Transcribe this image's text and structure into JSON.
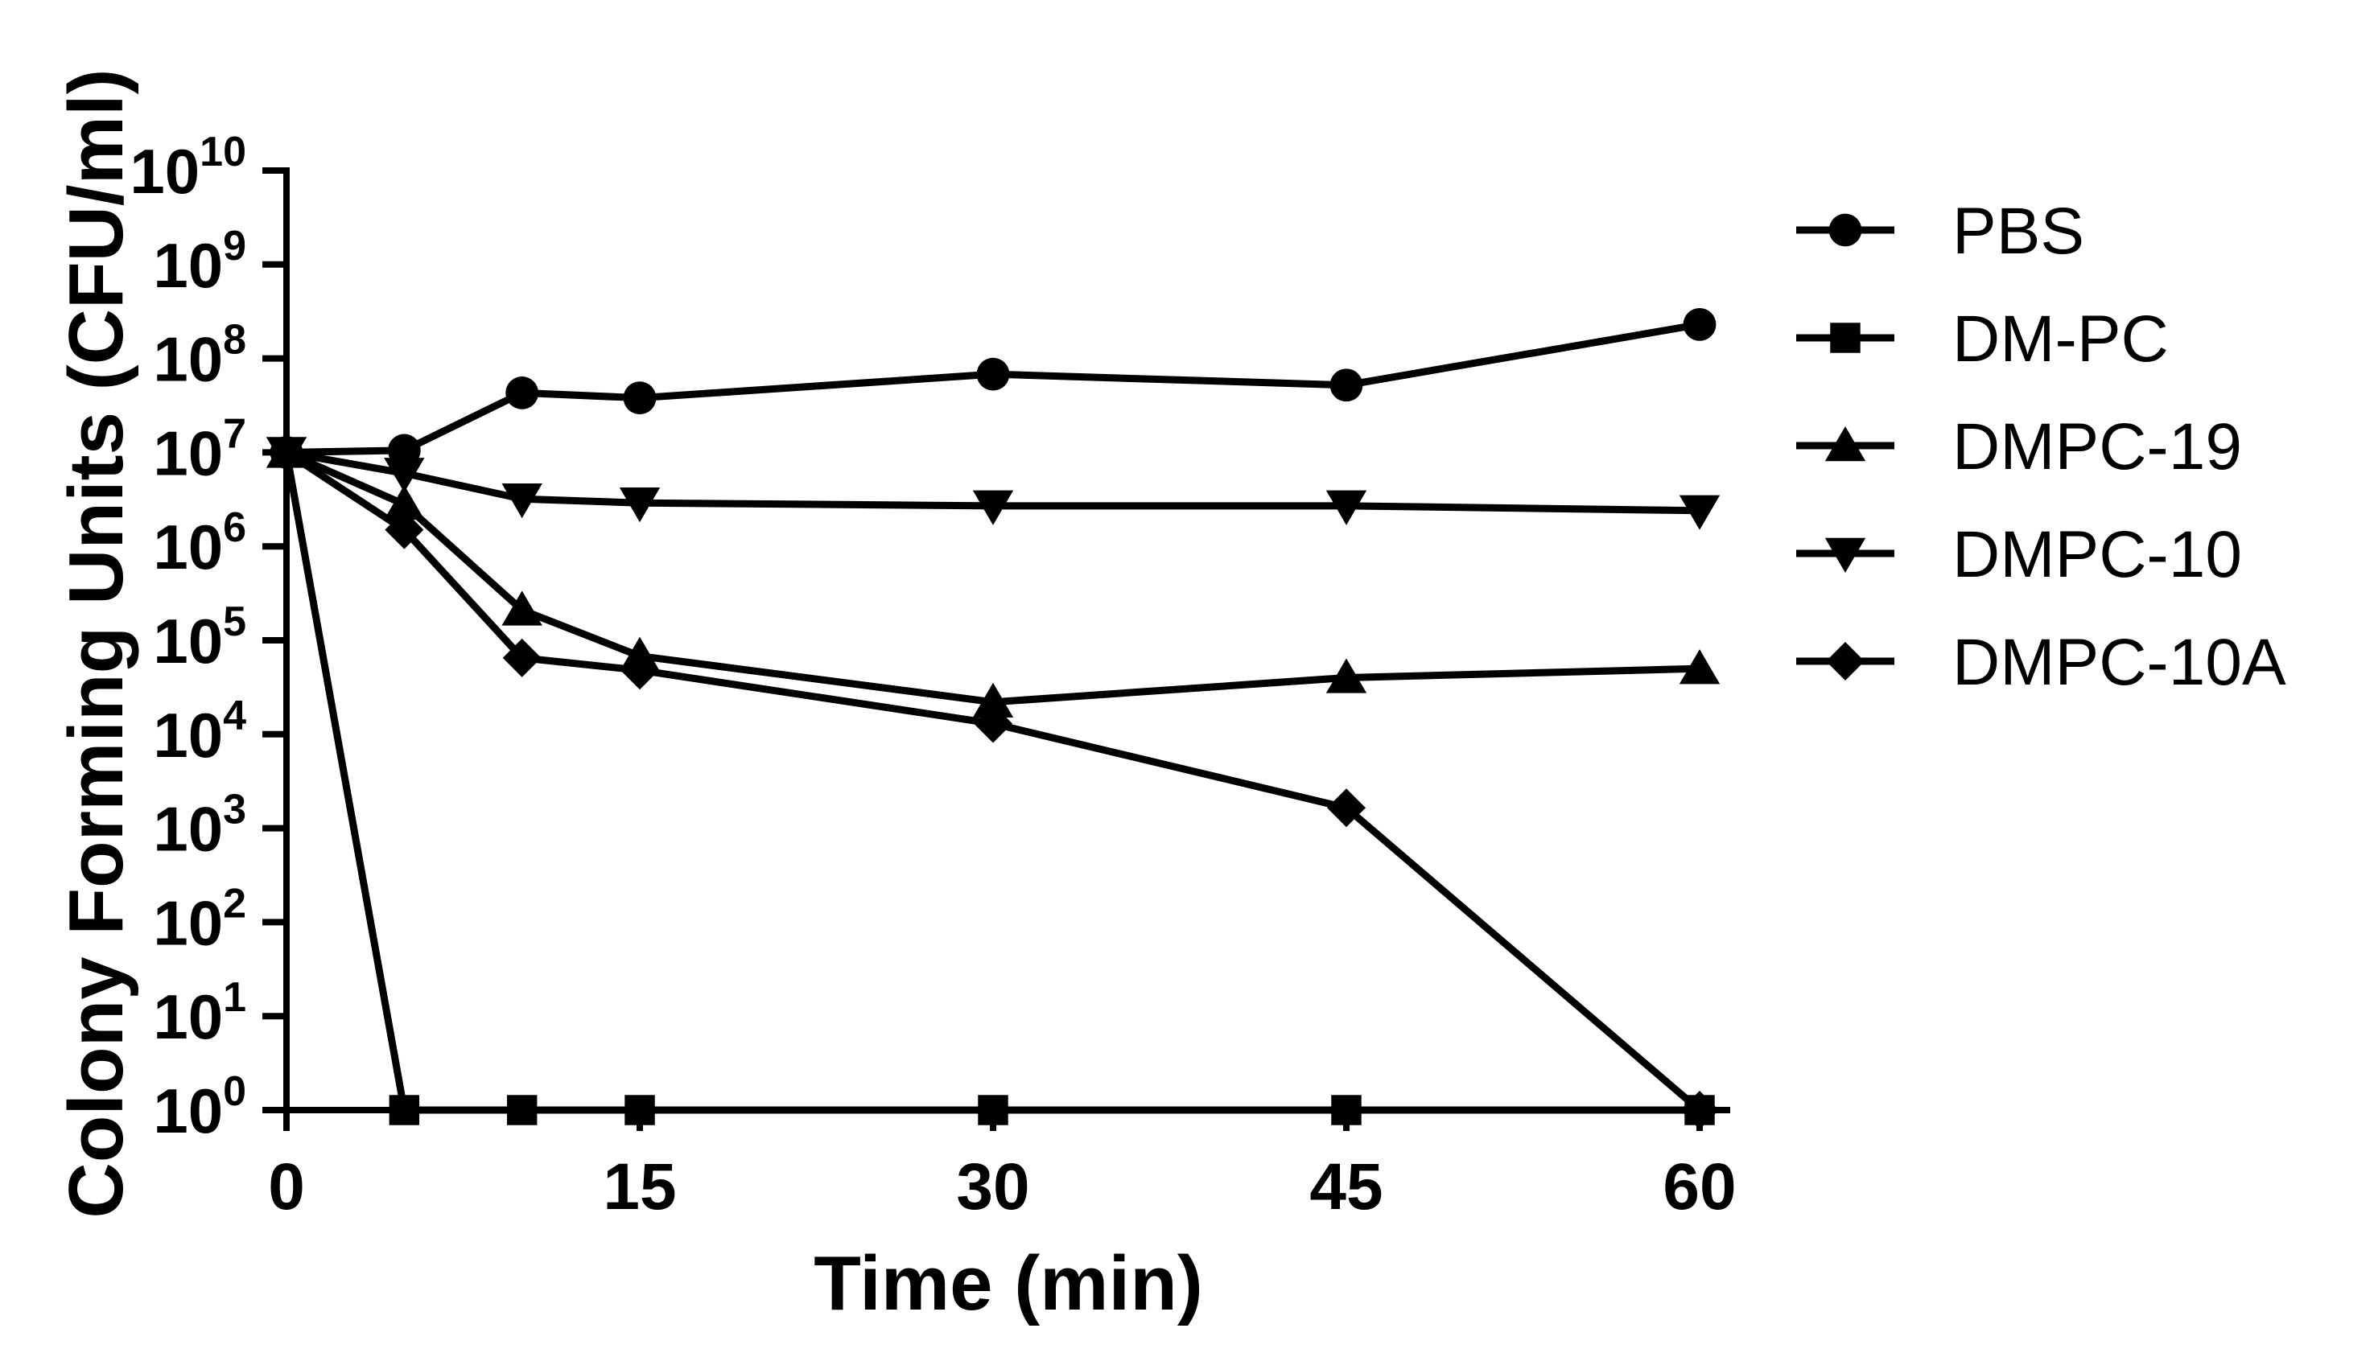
{
  "chart_data": {
    "type": "line",
    "title": "",
    "xlabel": "Time (min)",
    "ylabel": "Colony Forming Units (CFU/ml)",
    "xlim": [
      0,
      60
    ],
    "ylim": [
      1,
      10000000000
    ],
    "y_scale": "log",
    "x_ticks": [
      0,
      15,
      30,
      45,
      60
    ],
    "x_tick_labels": [
      "0",
      "15",
      "30",
      "45",
      "60"
    ],
    "y_ticks": [
      1,
      10,
      100,
      1000,
      10000,
      100000,
      1000000,
      10000000,
      100000000,
      1000000000,
      10000000000
    ],
    "y_tick_labels": [
      {
        "base": "10",
        "exp": "0"
      },
      {
        "base": "10",
        "exp": "1"
      },
      {
        "base": "10",
        "exp": "2"
      },
      {
        "base": "10",
        "exp": "3"
      },
      {
        "base": "10",
        "exp": "4"
      },
      {
        "base": "10",
        "exp": "5"
      },
      {
        "base": "10",
        "exp": "6"
      },
      {
        "base": "10",
        "exp": "7"
      },
      {
        "base": "10",
        "exp": "8"
      },
      {
        "base": "10",
        "exp": "9"
      },
      {
        "base": "10",
        "exp": "10"
      }
    ],
    "grid": false,
    "legend_position": "right",
    "x": [
      0,
      5,
      10,
      15,
      30,
      45,
      60
    ],
    "series": [
      {
        "name": "PBS",
        "marker": "circle",
        "values": [
          10000000,
          10500000,
          43000000,
          38000000,
          68000000,
          52000000,
          230000000
        ]
      },
      {
        "name": "DM-PC",
        "marker": "square",
        "values": [
          10000000,
          1,
          1,
          1,
          1,
          1,
          1
        ]
      },
      {
        "name": "DMPC-19",
        "marker": "triangle-up",
        "values": [
          10000000,
          2800000,
          210000,
          68000,
          22000,
          40000,
          50000
        ]
      },
      {
        "name": "DMPC-10",
        "marker": "triangle-down",
        "values": [
          10000000,
          6000000,
          3200000,
          2900000,
          2700000,
          2700000,
          2400000
        ]
      },
      {
        "name": "DMPC-10A",
        "marker": "diamond",
        "values": [
          10000000,
          1500000,
          65000,
          48000,
          13000,
          1650,
          1
        ]
      }
    ],
    "color": "#000000"
  }
}
